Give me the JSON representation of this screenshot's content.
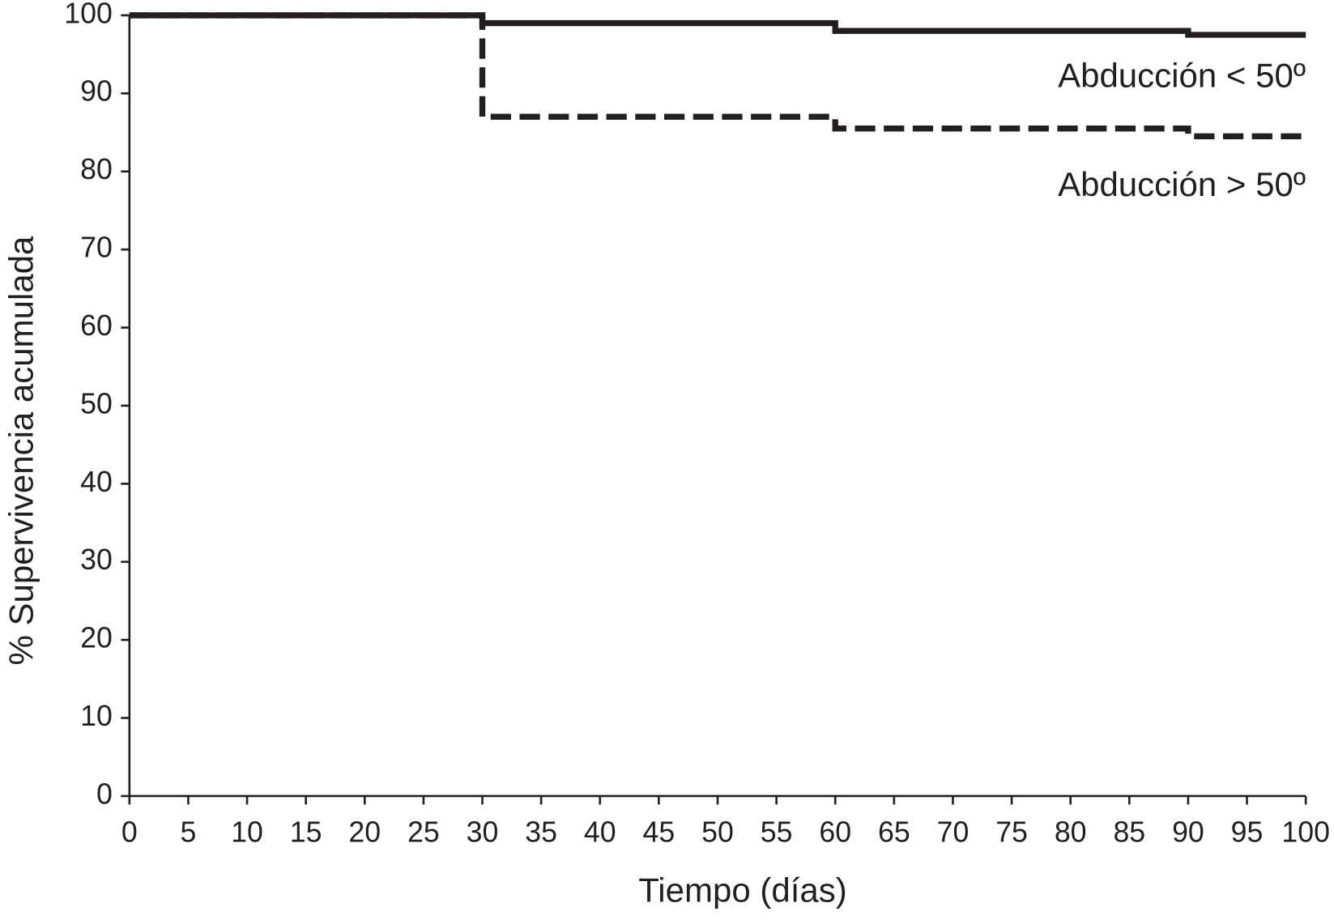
{
  "chart_data": {
    "type": "step-line",
    "x_label": "Tiempo (días)",
    "y_label": "% Supervivencia acumulada",
    "xlim": [
      0,
      100
    ],
    "xticks": [
      0,
      5,
      10,
      15,
      20,
      25,
      30,
      35,
      40,
      45,
      50,
      55,
      60,
      65,
      70,
      75,
      80,
      85,
      90,
      95,
      100
    ],
    "ylim": [
      0,
      100
    ],
    "yticks": [
      0,
      10,
      20,
      30,
      40,
      50,
      60,
      70,
      80,
      90,
      100
    ],
    "series": [
      {
        "name": "Abducción < 50º",
        "color": "#231f20",
        "style": "solid",
        "x": [
          0,
          30,
          30,
          60,
          60,
          90,
          90,
          100
        ],
        "values": [
          100,
          100,
          99,
          99,
          98,
          98,
          97.5,
          97.5
        ]
      },
      {
        "name": "Abducción > 50º",
        "color": "#231f20",
        "style": "dashed",
        "x": [
          0,
          30,
          30,
          60,
          60,
          90,
          90,
          100
        ],
        "values": [
          100,
          100,
          87,
          87,
          85.5,
          85.5,
          84.5,
          84.5
        ]
      }
    ]
  }
}
